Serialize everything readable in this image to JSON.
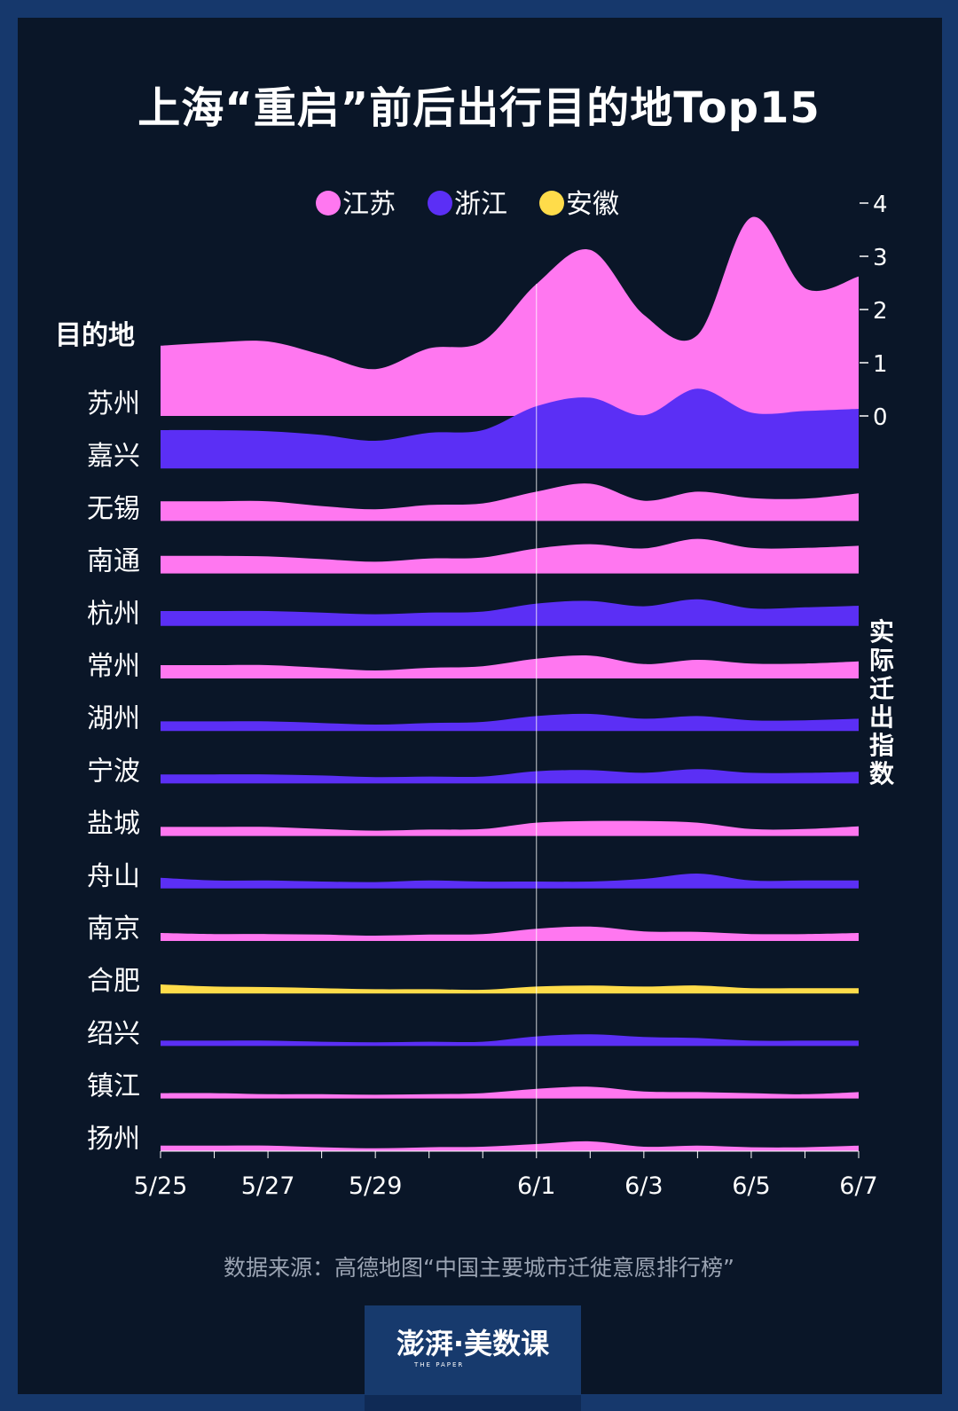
{
  "title": "上海“重启”前后出行目的地Top15",
  "source": "数据来源：高德地图“中国主要城市迁徙意愿排行榜”",
  "logo": {
    "main": "澎湃·美数课",
    "sub": "THE PAPER"
  },
  "chart_data": {
    "type": "area",
    "subtype": "ridgeline",
    "title": "上海“重启”前后出行目的地Top15",
    "row_header": "目的地",
    "ylabel": "实际迁出指数",
    "ylim": [
      0,
      4
    ],
    "yticks": [
      "0",
      "1",
      "2",
      "3",
      "4"
    ],
    "x": [
      "5/25",
      "5/26",
      "5/27",
      "5/28",
      "5/29",
      "5/30",
      "5/31",
      "6/1",
      "6/2",
      "6/3",
      "6/4",
      "6/5",
      "6/6",
      "6/7"
    ],
    "xtick_labels": [
      "5/25",
      "",
      "5/27",
      "",
      "5/29",
      "",
      "",
      "6/1",
      "",
      "6/3",
      "",
      "6/5",
      "",
      "6/7"
    ],
    "highlight_x": "6/1",
    "legend": [
      {
        "name": "江苏",
        "color": "#ff77f0"
      },
      {
        "name": "浙江",
        "color": "#5b2ff5"
      },
      {
        "name": "安徽",
        "color": "#ffdc4a"
      }
    ],
    "legend_position": "top",
    "series": [
      {
        "name": "苏州",
        "province": "江苏",
        "values": [
          1.32,
          1.38,
          1.4,
          1.15,
          0.88,
          1.27,
          1.4,
          2.48,
          3.12,
          1.9,
          1.52,
          3.73,
          2.4,
          2.62
        ]
      },
      {
        "name": "嘉兴",
        "province": "浙江",
        "values": [
          0.72,
          0.72,
          0.7,
          0.63,
          0.52,
          0.67,
          0.72,
          1.17,
          1.33,
          1.0,
          1.5,
          1.05,
          1.08,
          1.12
        ]
      },
      {
        "name": "无锡",
        "province": "江苏",
        "values": [
          0.37,
          0.37,
          0.37,
          0.28,
          0.22,
          0.3,
          0.33,
          0.55,
          0.7,
          0.38,
          0.55,
          0.43,
          0.42,
          0.52
        ]
      },
      {
        "name": "南通",
        "province": "江苏",
        "values": [
          0.33,
          0.33,
          0.32,
          0.27,
          0.22,
          0.28,
          0.3,
          0.47,
          0.55,
          0.47,
          0.65,
          0.48,
          0.48,
          0.52
        ]
      },
      {
        "name": "杭州",
        "province": "浙江",
        "values": [
          0.28,
          0.28,
          0.28,
          0.25,
          0.22,
          0.25,
          0.27,
          0.42,
          0.47,
          0.37,
          0.5,
          0.33,
          0.35,
          0.38
        ]
      },
      {
        "name": "常州",
        "province": "江苏",
        "values": [
          0.25,
          0.25,
          0.25,
          0.2,
          0.15,
          0.2,
          0.23,
          0.37,
          0.43,
          0.27,
          0.35,
          0.28,
          0.28,
          0.32
        ]
      },
      {
        "name": "湖州",
        "province": "浙江",
        "values": [
          0.18,
          0.18,
          0.18,
          0.15,
          0.12,
          0.15,
          0.17,
          0.28,
          0.32,
          0.23,
          0.28,
          0.2,
          0.2,
          0.23
        ]
      },
      {
        "name": "宁波",
        "province": "浙江",
        "values": [
          0.17,
          0.17,
          0.17,
          0.15,
          0.12,
          0.13,
          0.13,
          0.23,
          0.25,
          0.2,
          0.27,
          0.2,
          0.2,
          0.22
        ]
      },
      {
        "name": "盐城",
        "province": "江苏",
        "values": [
          0.17,
          0.17,
          0.17,
          0.13,
          0.1,
          0.12,
          0.13,
          0.25,
          0.28,
          0.28,
          0.25,
          0.13,
          0.13,
          0.18
        ]
      },
      {
        "name": "舟山",
        "province": "浙江",
        "values": [
          0.2,
          0.15,
          0.15,
          0.13,
          0.12,
          0.15,
          0.13,
          0.13,
          0.13,
          0.18,
          0.28,
          0.15,
          0.15,
          0.15
        ]
      },
      {
        "name": "南京",
        "province": "江苏",
        "values": [
          0.15,
          0.13,
          0.13,
          0.12,
          0.1,
          0.12,
          0.13,
          0.23,
          0.27,
          0.18,
          0.17,
          0.13,
          0.13,
          0.15
        ]
      },
      {
        "name": "合肥",
        "province": "安徽",
        "values": [
          0.17,
          0.13,
          0.12,
          0.1,
          0.08,
          0.08,
          0.07,
          0.13,
          0.15,
          0.13,
          0.15,
          0.1,
          0.1,
          0.1
        ]
      },
      {
        "name": "绍兴",
        "province": "浙江",
        "values": [
          0.1,
          0.1,
          0.1,
          0.08,
          0.07,
          0.08,
          0.08,
          0.18,
          0.22,
          0.17,
          0.15,
          0.1,
          0.1,
          0.1
        ]
      },
      {
        "name": "镇江",
        "province": "江苏",
        "values": [
          0.1,
          0.1,
          0.08,
          0.08,
          0.07,
          0.08,
          0.1,
          0.18,
          0.22,
          0.13,
          0.12,
          0.1,
          0.08,
          0.12
        ]
      },
      {
        "name": "扬州",
        "province": "江苏",
        "values": [
          0.1,
          0.1,
          0.1,
          0.07,
          0.05,
          0.07,
          0.08,
          0.13,
          0.18,
          0.08,
          0.1,
          0.07,
          0.07,
          0.1
        ]
      }
    ]
  }
}
